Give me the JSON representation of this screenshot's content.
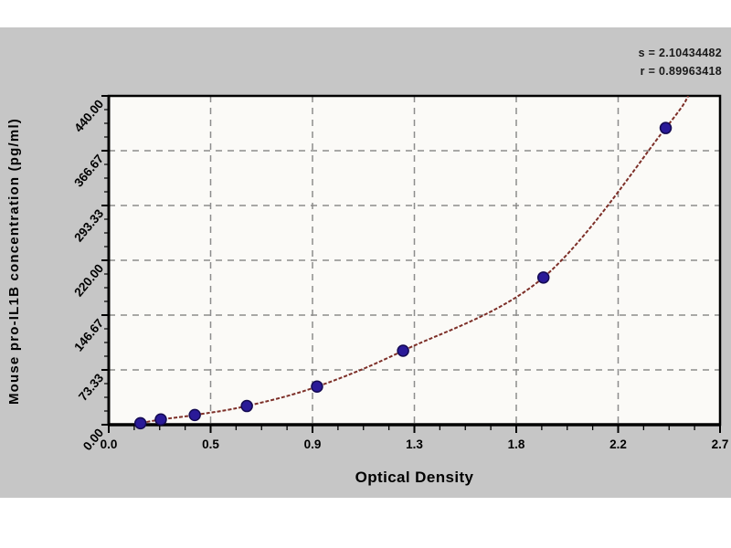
{
  "chart_data": {
    "type": "scatter",
    "xlabel": "Optical Density",
    "ylabel": "Mouse pro-IL1B concentration (pg/ml)",
    "annotations": [
      "s = 2.10434482",
      "r = 0.89963418"
    ],
    "xlim": [
      0,
      2.7
    ],
    "ylim": [
      0,
      440
    ],
    "grid": true,
    "legend": false,
    "x_ticks": {
      "positions": [
        0,
        0.45,
        0.9,
        1.35,
        1.8,
        2.25,
        2.7
      ],
      "labels": [
        "0.0",
        "0.5",
        "0.9",
        "1.3",
        "1.8",
        "2.2",
        "2.7"
      ],
      "minor_divisions": 4
    },
    "y_ticks": {
      "positions": [
        0,
        73.33,
        146.67,
        220,
        293.33,
        366.67,
        440
      ],
      "labels": [
        "0.00",
        "73.33",
        "146.67",
        "220.00",
        "293.33",
        "366.67",
        "440.00"
      ],
      "minor_divisions": 4
    },
    "series": [
      {
        "name": "standard-points",
        "marker": "circle",
        "points": [
          {
            "x": 0.14,
            "y": 2
          },
          {
            "x": 0.23,
            "y": 7
          },
          {
            "x": 0.38,
            "y": 13
          },
          {
            "x": 0.61,
            "y": 25
          },
          {
            "x": 0.92,
            "y": 51
          },
          {
            "x": 1.3,
            "y": 99
          },
          {
            "x": 1.92,
            "y": 197
          },
          {
            "x": 2.46,
            "y": 397
          }
        ]
      }
    ],
    "fit_curve": {
      "name": "fitted-curve",
      "points": [
        {
          "x": 0.12,
          "y": 1
        },
        {
          "x": 0.14,
          "y": 2
        },
        {
          "x": 0.23,
          "y": 7
        },
        {
          "x": 0.38,
          "y": 13
        },
        {
          "x": 0.61,
          "y": 25
        },
        {
          "x": 0.92,
          "y": 51
        },
        {
          "x": 1.3,
          "y": 99
        },
        {
          "x": 1.92,
          "y": 197
        },
        {
          "x": 2.46,
          "y": 397
        },
        {
          "x": 2.56,
          "y": 440
        }
      ]
    },
    "colors": {
      "marker": "#2a1a98",
      "marker_edge": "#140a52",
      "curve": "#7d2f28",
      "grid": "#8c8c8c",
      "frame": "#000000",
      "plot_bg": "#fbfaf7",
      "panel_bg": "#c6c6c6",
      "page_bg": "#ffffff",
      "text": "#000000"
    }
  }
}
